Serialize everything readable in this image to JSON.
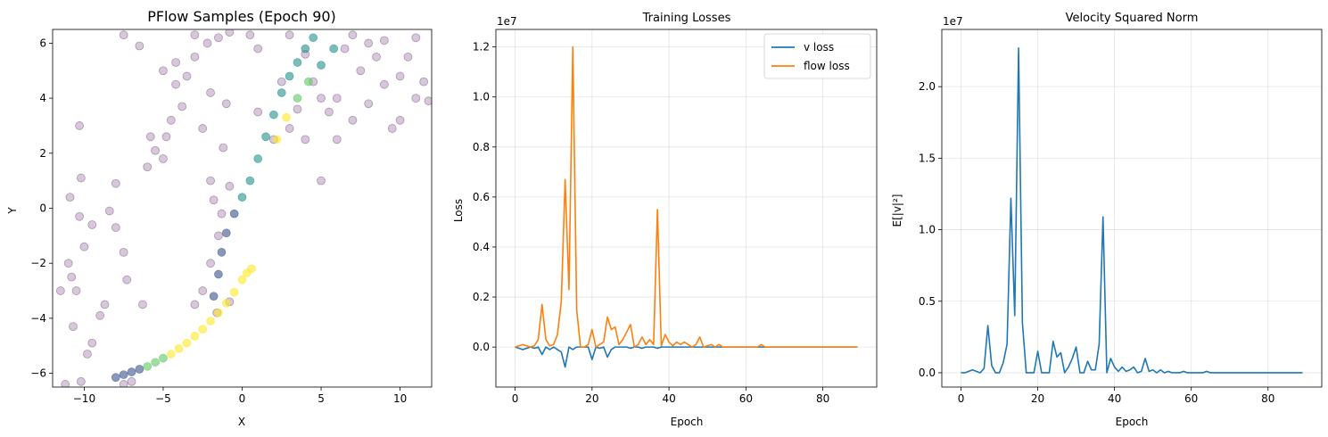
{
  "chart_data": [
    {
      "type": "scatter",
      "title": "PFlow Samples (Epoch 90)",
      "xlabel": "X",
      "ylabel": "Y",
      "xlim": [
        -12,
        12
      ],
      "ylim": [
        -6.5,
        6.5
      ],
      "xticks": [
        -10,
        -5,
        0,
        5,
        10
      ],
      "yticks": [
        -6,
        -4,
        -2,
        0,
        2,
        4,
        6
      ],
      "grid": false,
      "colors": {
        "target": "#440154",
        "curve_low": "#3b528b",
        "curve_mid": "#21918c",
        "curve_high": "#5ec962",
        "curve_top": "#fde725"
      },
      "series": [
        {
          "values": [
            [
              -11.5,
              -3.0
            ],
            [
              -11.0,
              -2.0
            ],
            [
              -10.5,
              -3.0
            ],
            [
              -10.7,
              -4.3
            ],
            [
              -11.2,
              -6.4
            ],
            [
              -10.2,
              -6.3
            ],
            [
              -9.8,
              -5.3
            ],
            [
              -9.5,
              -4.9
            ],
            [
              -9.0,
              -3.9
            ],
            [
              -8.7,
              -3.5
            ],
            [
              -10.8,
              -2.5
            ],
            [
              -10.0,
              -1.4
            ],
            [
              -10.3,
              -0.3
            ],
            [
              -9.5,
              -0.6
            ],
            [
              -10.9,
              0.4
            ],
            [
              -10.2,
              1.1
            ],
            [
              -10.3,
              3.0
            ],
            [
              -8.0,
              0.9
            ],
            [
              -8.4,
              -0.1
            ],
            [
              -8.0,
              -0.7
            ],
            [
              -7.5,
              -1.6
            ],
            [
              -7.3,
              -2.6
            ],
            [
              -6.3,
              -3.5
            ],
            [
              -7.5,
              -6.4
            ],
            [
              -7.0,
              -6.3
            ],
            [
              -6.0,
              1.5
            ],
            [
              -5.0,
              1.8
            ],
            [
              -5.5,
              2.1
            ],
            [
              -4.8,
              2.6
            ],
            [
              -5.8,
              2.6
            ],
            [
              -4.5,
              3.2
            ],
            [
              -3.8,
              3.7
            ],
            [
              -4.2,
              4.5
            ],
            [
              -3.5,
              4.8
            ],
            [
              -5.0,
              5.0
            ],
            [
              -4.2,
              5.3
            ],
            [
              -3.0,
              5.5
            ],
            [
              -2.2,
              6.0
            ],
            [
              -1.5,
              6.2
            ],
            [
              -0.8,
              6.4
            ],
            [
              0.5,
              6.3
            ],
            [
              1.0,
              5.8
            ],
            [
              -2.0,
              4.2
            ],
            [
              -1.0,
              3.8
            ],
            [
              -2.5,
              2.9
            ],
            [
              -1.2,
              2.2
            ],
            [
              -2.0,
              1.0
            ],
            [
              -1.8,
              0.3
            ],
            [
              -1.3,
              -0.2
            ],
            [
              -0.8,
              0.8
            ],
            [
              -1.5,
              -1.0
            ],
            [
              -2.0,
              -2.0
            ],
            [
              -3.0,
              -3.5
            ],
            [
              -2.5,
              -3.0
            ],
            [
              -1.6,
              -3.8
            ],
            [
              -0.8,
              -3.4
            ],
            [
              1.0,
              3.5
            ],
            [
              2.0,
              2.5
            ],
            [
              3.0,
              2.9
            ],
            [
              4.0,
              2.5
            ],
            [
              5.0,
              1.0
            ],
            [
              5.5,
              3.5
            ],
            [
              6.0,
              4.0
            ],
            [
              7.0,
              3.2
            ],
            [
              8.0,
              3.8
            ],
            [
              9.0,
              4.5
            ],
            [
              10.0,
              3.2
            ],
            [
              11.0,
              4.0
            ],
            [
              11.5,
              4.6
            ],
            [
              9.5,
              2.9
            ],
            [
              8.5,
              5.5
            ],
            [
              10.5,
              5.5
            ],
            [
              7.5,
              5.0
            ],
            [
              6.5,
              5.8
            ],
            [
              9.0,
              6.1
            ],
            [
              11.0,
              6.2
            ],
            [
              4.5,
              4.6
            ],
            [
              3.5,
              3.6
            ],
            [
              2.5,
              4.6
            ],
            [
              5.0,
              4.0
            ],
            [
              6.0,
              2.5
            ],
            [
              4.0,
              5.6
            ],
            [
              3.0,
              6.3
            ],
            [
              7.0,
              6.3
            ],
            [
              8.0,
              6.0
            ],
            [
              10.0,
              4.8
            ],
            [
              11.8,
              3.9
            ],
            [
              -6.5,
              5.9
            ],
            [
              -7.5,
              6.3
            ],
            [
              -3.0,
              6.3
            ]
          ]
        },
        {
          "values": [
            [
              -8.0,
              -6.15
            ],
            [
              -7.5,
              -6.05
            ],
            [
              -7.0,
              -5.95
            ],
            [
              -6.5,
              -5.85
            ],
            [
              -6.0,
              -5.75
            ],
            [
              -5.5,
              -5.6
            ],
            [
              -5.0,
              -5.45
            ],
            [
              -4.5,
              -5.3
            ],
            [
              -4.0,
              -5.1
            ],
            [
              -3.5,
              -4.9
            ],
            [
              -3.0,
              -4.65
            ],
            [
              -2.5,
              -4.4
            ],
            [
              -2.0,
              -4.1
            ],
            [
              -1.5,
              -3.8
            ],
            [
              -1.0,
              -3.45
            ],
            [
              -0.5,
              -3.05
            ],
            [
              0.0,
              -2.6
            ],
            [
              0.3,
              -2.35
            ],
            [
              0.6,
              -2.2
            ],
            [
              -1.8,
              -3.2
            ],
            [
              -1.5,
              -2.4
            ],
            [
              -1.3,
              -1.6
            ],
            [
              -1.0,
              -0.9
            ],
            [
              -0.5,
              -0.2
            ],
            [
              0.0,
              0.4
            ],
            [
              0.5,
              1.0
            ],
            [
              1.0,
              1.8
            ],
            [
              1.5,
              2.6
            ],
            [
              2.0,
              3.4
            ],
            [
              2.5,
              4.2
            ],
            [
              3.0,
              4.8
            ],
            [
              3.5,
              5.3
            ],
            [
              4.0,
              5.8
            ],
            [
              4.5,
              6.2
            ],
            [
              2.2,
              2.5
            ],
            [
              2.8,
              3.3
            ],
            [
              3.5,
              4.0
            ],
            [
              4.2,
              4.6
            ],
            [
              5.0,
              5.2
            ],
            [
              5.8,
              5.8
            ]
          ]
        }
      ]
    },
    {
      "type": "line",
      "title": "Training Losses",
      "xlabel": "Epoch",
      "ylabel": "Loss",
      "multiplier": "1e7",
      "xlim": [
        -5,
        94
      ],
      "ylim": [
        -0.16,
        1.27
      ],
      "xticks": [
        0,
        20,
        40,
        60,
        80
      ],
      "yticks": [
        "0.0",
        "0.2",
        "0.4",
        "0.6",
        "0.8",
        "1.0",
        "1.2"
      ],
      "grid": true,
      "legend": "top-right",
      "x": [
        0,
        1,
        2,
        3,
        4,
        5,
        6,
        7,
        8,
        9,
        10,
        11,
        12,
        13,
        14,
        15,
        16,
        17,
        18,
        19,
        20,
        21,
        22,
        23,
        24,
        25,
        26,
        27,
        28,
        29,
        30,
        31,
        32,
        33,
        34,
        35,
        36,
        37,
        38,
        39,
        40,
        41,
        42,
        43,
        44,
        45,
        46,
        47,
        48,
        49,
        50,
        51,
        52,
        53,
        54,
        55,
        56,
        57,
        58,
        59,
        60,
        61,
        62,
        63,
        64,
        65,
        66,
        67,
        68,
        69,
        70,
        71,
        72,
        73,
        74,
        75,
        76,
        77,
        78,
        79,
        80,
        81,
        82,
        83,
        84,
        85,
        86,
        87,
        88,
        89
      ],
      "series": [
        {
          "name": "v loss",
          "color": "#1f77b4",
          "values": [
            0,
            -0.005,
            -0.01,
            -0.005,
            0,
            -0.005,
            0,
            -0.03,
            0,
            -0.01,
            0,
            -0.01,
            -0.02,
            -0.08,
            0,
            -0.01,
            0,
            0,
            0,
            0,
            -0.05,
            0,
            -0.005,
            0,
            -0.04,
            -0.01,
            0,
            0,
            0,
            0,
            -0.005,
            0,
            0,
            -0.005,
            0,
            0,
            0,
            -0.005,
            0,
            0,
            0,
            0,
            0,
            0,
            0,
            0,
            0,
            0,
            0,
            0,
            0,
            0,
            0,
            0,
            0,
            0,
            0,
            0,
            0,
            0,
            0,
            0,
            0,
            0,
            0,
            0,
            0,
            0,
            0,
            0,
            0,
            0,
            0,
            0,
            0,
            0,
            0,
            0,
            0,
            0,
            0,
            0,
            0,
            0,
            0,
            0,
            0,
            0,
            0,
            0
          ]
        },
        {
          "name": "flow loss",
          "color": "#ff7f0e",
          "values": [
            0,
            0.005,
            0.01,
            0.005,
            0,
            0.005,
            0.03,
            0.17,
            0.03,
            0.005,
            0.01,
            0.05,
            0.18,
            0.67,
            0.23,
            1.2,
            0.15,
            0,
            0,
            0.01,
            0.07,
            0,
            0.01,
            0.02,
            0.12,
            0.07,
            0.08,
            0.01,
            0.03,
            0.06,
            0.09,
            0,
            0.01,
            0.04,
            0.01,
            0.03,
            0.01,
            0.55,
            0.005,
            0.05,
            0.02,
            0.005,
            0.02,
            0.01,
            0.02,
            0.01,
            0,
            0.01,
            0.04,
            0,
            0.005,
            0.01,
            0,
            0.01,
            0,
            0,
            0,
            0,
            0,
            0,
            0,
            0,
            0,
            0,
            0.01,
            0,
            0,
            0,
            0,
            0,
            0,
            0,
            0,
            0,
            0,
            0,
            0,
            0,
            0,
            0,
            0,
            0,
            0,
            0,
            0,
            0,
            0,
            0,
            0,
            0
          ]
        }
      ]
    },
    {
      "type": "line",
      "title": "Velocity Squared Norm",
      "xlabel": "Epoch",
      "ylabel": "E[|v|²]",
      "multiplier": "1e7",
      "xlim": [
        -5,
        94
      ],
      "ylim": [
        -0.1,
        2.4
      ],
      "xticks": [
        0,
        20,
        40,
        60,
        80
      ],
      "yticks": [
        "0.0",
        "0.5",
        "1.0",
        "1.5",
        "2.0"
      ],
      "grid": true,
      "x": [
        0,
        1,
        2,
        3,
        4,
        5,
        6,
        7,
        8,
        9,
        10,
        11,
        12,
        13,
        14,
        15,
        16,
        17,
        18,
        19,
        20,
        21,
        22,
        23,
        24,
        25,
        26,
        27,
        28,
        29,
        30,
        31,
        32,
        33,
        34,
        35,
        36,
        37,
        38,
        39,
        40,
        41,
        42,
        43,
        44,
        45,
        46,
        47,
        48,
        49,
        50,
        51,
        52,
        53,
        54,
        55,
        56,
        57,
        58,
        59,
        60,
        61,
        62,
        63,
        64,
        65,
        66,
        67,
        68,
        69,
        70,
        71,
        72,
        73,
        74,
        75,
        76,
        77,
        78,
        79,
        80,
        81,
        82,
        83,
        84,
        85,
        86,
        87,
        88,
        89
      ],
      "series": [
        {
          "color": "#1f77b4",
          "values": [
            0,
            0,
            0.01,
            0.02,
            0.01,
            0,
            0.03,
            0.33,
            0.05,
            0,
            0,
            0.07,
            0.2,
            1.22,
            0.4,
            2.27,
            0.35,
            0,
            0,
            0,
            0.15,
            0,
            0,
            0,
            0.22,
            0.11,
            0.14,
            0,
            0.04,
            0.1,
            0.18,
            0,
            0,
            0.08,
            0.02,
            0.02,
            0.2,
            1.09,
            0,
            0.1,
            0.04,
            0.01,
            0.04,
            0.01,
            0.02,
            0.04,
            0,
            0.01,
            0.1,
            0.01,
            0.02,
            0,
            0.02,
            0,
            0.01,
            0,
            0,
            0,
            0.01,
            0,
            0,
            0,
            0,
            0,
            0.01,
            0,
            0,
            0,
            0,
            0,
            0,
            0,
            0,
            0,
            0,
            0,
            0,
            0,
            0,
            0,
            0,
            0,
            0,
            0,
            0,
            0,
            0,
            0,
            0,
            0
          ]
        }
      ]
    }
  ]
}
